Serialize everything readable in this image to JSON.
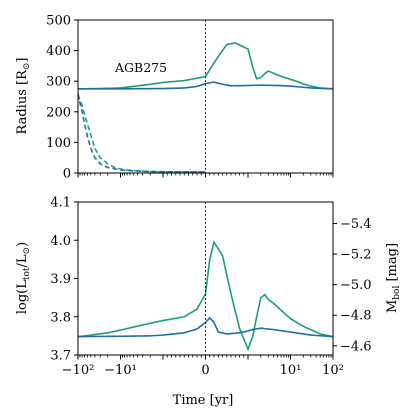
{
  "chart_data": [
    {
      "type": "line",
      "annotation": "AGB275",
      "ylabel": "Radius [R⊙]",
      "xlim": [
        -100,
        100
      ],
      "x_scale": "symlog",
      "ylim": [
        0,
        500
      ],
      "yticks": [
        0,
        100,
        200,
        300,
        400,
        500
      ],
      "grid": false,
      "vline_x": 0,
      "colors": {
        "green": "#1b9e77",
        "blue": "#1f6ea8"
      },
      "series": [
        {
          "color": "green",
          "style": "solid",
          "x": [
            -100,
            -30,
            -10,
            -5,
            -2,
            -1,
            -0.5,
            0,
            0.2,
            0.5,
            0.7,
            1,
            1.3,
            1.6,
            2,
            2.5,
            3,
            4,
            5,
            7,
            10,
            15,
            20,
            30,
            50,
            100
          ],
          "y": [
            275,
            276,
            278,
            283,
            290,
            296,
            302,
            315,
            360,
            420,
            425,
            405,
            345,
            308,
            312,
            325,
            333,
            326,
            320,
            313,
            306,
            298,
            291,
            284,
            278,
            275
          ]
        },
        {
          "color": "blue",
          "style": "solid",
          "x": [
            -100,
            -10,
            -1,
            -0.5,
            -0.2,
            0,
            0.2,
            0.4,
            0.6,
            1,
            2,
            5,
            10,
            30,
            100
          ],
          "y": [
            275,
            275,
            276,
            278,
            283,
            292,
            297,
            290,
            285,
            286,
            287,
            286,
            284,
            278,
            275
          ]
        },
        {
          "color": "green",
          "style": "dashed",
          "x": [
            -100,
            -80,
            -60,
            -40,
            -30,
            -20,
            -15,
            -10,
            -7,
            -5,
            -3,
            -2,
            -1,
            -0.5,
            0
          ],
          "y": [
            255,
            220,
            160,
            80,
            50,
            30,
            20,
            13,
            10,
            8,
            6,
            5,
            4,
            4,
            3
          ]
        },
        {
          "color": "blue",
          "style": "dashed",
          "x": [
            -100,
            -90,
            -80,
            -70,
            -60,
            -50,
            -40,
            -30,
            -20,
            -10,
            -5,
            -2,
            -1,
            -0.5,
            0
          ],
          "y": [
            260,
            230,
            200,
            160,
            120,
            80,
            50,
            30,
            18,
            10,
            7,
            5,
            4,
            4,
            3
          ]
        }
      ]
    },
    {
      "type": "line",
      "ylabel": "log(L_tot/L⊙)",
      "y2label": "M_bol [mag]",
      "xlabel": "Time [yr]",
      "xlim": [
        -100,
        100
      ],
      "x_scale": "symlog",
      "xticks": [
        {
          "value": -100,
          "label": "−10²"
        },
        {
          "value": -10,
          "label": "−10¹"
        },
        {
          "value": 0,
          "label": "0"
        },
        {
          "value": 10,
          "label": "10¹"
        },
        {
          "value": 100,
          "label": "10²"
        }
      ],
      "ylim": [
        3.7,
        4.1
      ],
      "yticks": [
        3.7,
        3.8,
        3.9,
        4.0,
        4.1
      ],
      "y2_range": [
        -4.54,
        -5.54
      ],
      "y2ticks": [
        -4.6,
        -4.8,
        -5.0,
        -5.2,
        -5.4
      ],
      "grid": false,
      "vline_x": 0,
      "colors": {
        "green": "#1b9e77",
        "blue": "#1f6ea8"
      },
      "series": [
        {
          "color": "green",
          "style": "solid",
          "x": [
            -100,
            -50,
            -20,
            -10,
            -5,
            -2,
            -1,
            -0.5,
            -0.2,
            0,
            0.1,
            0.2,
            0.4,
            0.6,
            0.8,
            1,
            1.3,
            1.6,
            2,
            2.5,
            3,
            3.5,
            4,
            5,
            7,
            10,
            20,
            50,
            100
          ],
          "y": [
            3.748,
            3.752,
            3.758,
            3.765,
            3.773,
            3.783,
            3.79,
            3.8,
            3.82,
            3.86,
            3.95,
            3.995,
            3.96,
            3.86,
            3.77,
            3.715,
            3.75,
            3.8,
            3.85,
            3.858,
            3.845,
            3.84,
            3.835,
            3.825,
            3.81,
            3.795,
            3.775,
            3.755,
            3.748
          ]
        },
        {
          "color": "blue",
          "style": "solid",
          "x": [
            -100,
            -10,
            -2,
            -1,
            -0.5,
            -0.2,
            0,
            0.1,
            0.2,
            0.3,
            0.5,
            0.8,
            1,
            1.5,
            2,
            3,
            5,
            10,
            30,
            100
          ],
          "y": [
            3.748,
            3.749,
            3.75,
            3.752,
            3.758,
            3.768,
            3.785,
            3.797,
            3.785,
            3.76,
            3.755,
            3.758,
            3.763,
            3.768,
            3.77,
            3.768,
            3.765,
            3.76,
            3.752,
            3.748
          ]
        }
      ]
    }
  ],
  "axis_titles": {
    "top_y": "Radius [R",
    "top_y_sub": "⊙",
    "top_y_end": "]",
    "bottom_y_pre": "log(L",
    "bottom_y_sub": "tot",
    "bottom_y_mid": "/L",
    "bottom_y_sub2": "⊙",
    "bottom_y_end": ")",
    "right_y_pre": "M",
    "right_y_sub": "bol",
    "right_y_end": " [mag]",
    "x": "Time [yr]"
  }
}
